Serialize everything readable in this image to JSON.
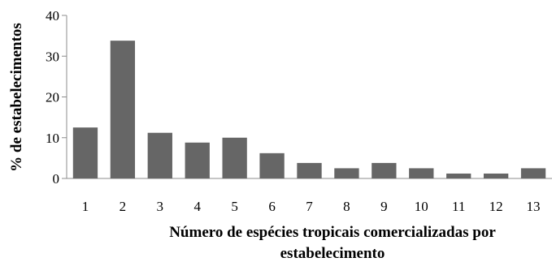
{
  "chart_data": {
    "type": "bar",
    "categories": [
      "1",
      "2",
      "3",
      "4",
      "5",
      "6",
      "7",
      "8",
      "9",
      "10",
      "11",
      "12",
      "13"
    ],
    "values": [
      12.5,
      33.8,
      11.2,
      8.8,
      10.0,
      6.2,
      3.8,
      2.5,
      3.8,
      2.5,
      1.2,
      1.2,
      2.5
    ],
    "title": "",
    "xlabel_lines": [
      "Número de espécies tropicais comercializadas por",
      "estabelecimento"
    ],
    "ylabel": "%  de estabelecimentos",
    "ylim": [
      0,
      40
    ],
    "yticks": [
      0,
      10,
      20,
      30,
      40
    ],
    "grid": false,
    "legend": "none",
    "bar_color": "#666666",
    "axis_color": "#8c8c8c"
  }
}
